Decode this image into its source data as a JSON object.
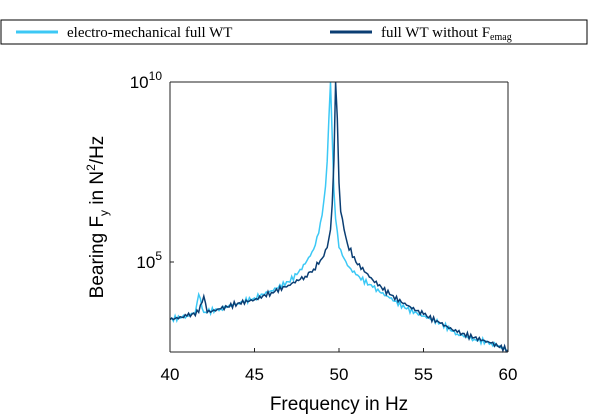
{
  "chart_data": {
    "type": "line",
    "xlabel": "Frequency in Hz",
    "ylabel": {
      "prefix": "Bearing F",
      "sub": "y",
      "middle": " in N",
      "sup": "2",
      "suffix": "/Hz"
    },
    "xlim": [
      40,
      60
    ],
    "ylim_log10": [
      2.5,
      10
    ],
    "y_scale": "log",
    "x_ticks": [
      40,
      45,
      50,
      55,
      60
    ],
    "x_tick_labels": [
      "40",
      "45",
      "50",
      "55",
      "60"
    ],
    "y_ticks": [
      {
        "value_log10": 5,
        "base": "10",
        "exp": "5"
      },
      {
        "value_log10": 10,
        "base": "10",
        "exp": "10"
      }
    ],
    "grid": false,
    "legend_position": "top",
    "series": [
      {
        "name": "electro-mechanical full WT",
        "color": "#3CC8F5",
        "x": [
          40,
          41,
          41.5,
          41.7,
          42,
          43,
          44,
          45,
          46,
          47,
          47.5,
          48,
          48.5,
          48.8,
          49,
          49.2,
          49.3,
          49.4,
          49.5,
          49.6,
          49.7,
          49.8,
          50,
          50.5,
          51,
          52,
          53,
          54,
          55,
          56,
          57,
          58,
          59,
          60
        ],
        "y_log10": [
          3.4,
          3.5,
          3.6,
          4.1,
          3.6,
          3.7,
          3.85,
          4.0,
          4.2,
          4.45,
          4.65,
          4.95,
          5.35,
          5.8,
          6.3,
          7.1,
          7.8,
          9.0,
          10.0,
          8.5,
          7.0,
          6.2,
          5.4,
          4.9,
          4.65,
          4.3,
          4.0,
          3.7,
          3.5,
          3.3,
          3.0,
          2.85,
          2.75,
          2.55
        ]
      },
      {
        "name": "full WT without F",
        "name_sub": "emag",
        "color": "#0B3E73",
        "x": [
          40,
          41,
          41.7,
          42,
          42.2,
          43,
          44,
          45,
          46,
          47,
          48,
          48.5,
          49,
          49.3,
          49.5,
          49.6,
          49.7,
          49.8,
          49.9,
          50,
          50.1,
          50.3,
          50.5,
          51,
          52,
          53,
          54,
          55,
          56,
          57,
          58,
          59,
          60
        ],
        "y_log10": [
          3.4,
          3.5,
          3.6,
          4.05,
          3.6,
          3.7,
          3.85,
          3.95,
          4.15,
          4.35,
          4.6,
          4.8,
          5.1,
          5.4,
          5.9,
          6.6,
          7.8,
          10.0,
          9.0,
          7.2,
          6.4,
          5.9,
          5.5,
          5.0,
          4.5,
          4.1,
          3.8,
          3.55,
          3.3,
          3.05,
          2.9,
          2.75,
          2.55
        ]
      }
    ]
  }
}
